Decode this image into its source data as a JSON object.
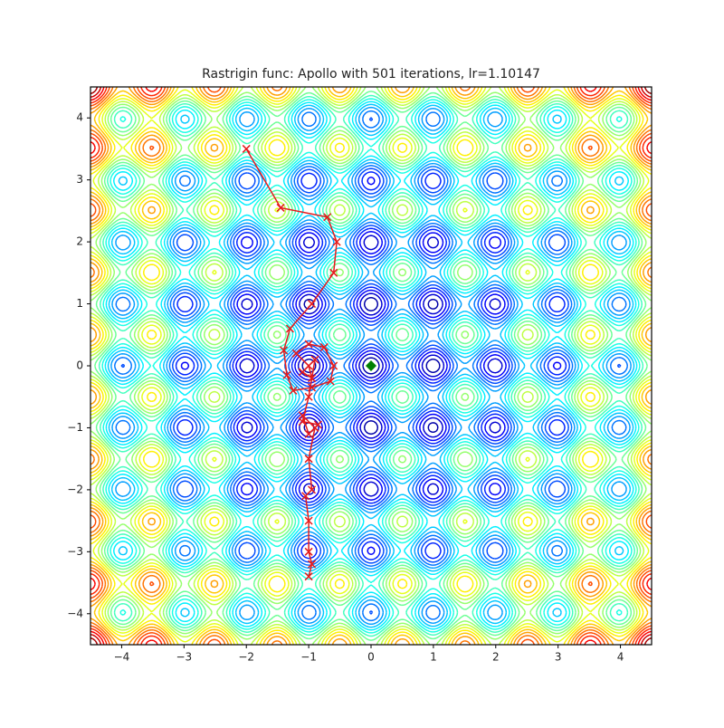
{
  "chart_data": {
    "type": "contour",
    "title": "Rastrigin func: Apollo with 501 iterations, lr=1.10147",
    "function": "rastrigin",
    "colormap": "jet",
    "levels": 25,
    "xlim": [
      -4.5,
      4.5
    ],
    "ylim": [
      -4.5,
      4.5
    ],
    "xticks": [
      {
        "value": -4,
        "label": "−4"
      },
      {
        "value": -3,
        "label": "−3"
      },
      {
        "value": -2,
        "label": "−2"
      },
      {
        "value": -1,
        "label": "−1"
      },
      0,
      1,
      2,
      3,
      4
    ],
    "yticks": [
      {
        "value": -4,
        "label": "−4"
      },
      {
        "value": -3,
        "label": "−3"
      },
      {
        "value": -2,
        "label": "−2"
      },
      {
        "value": -1,
        "label": "−1"
      },
      0,
      1,
      2,
      3,
      4
    ],
    "path": {
      "color": "#e41a1c",
      "x": [
        -2,
        -1.45,
        -0.7,
        -0.55,
        -0.6,
        -0.95,
        -1.3,
        -1.4,
        -1.35,
        -1.25,
        -0.95,
        -0.65,
        -0.6,
        -0.75,
        -1.0,
        -1.2,
        -1.0,
        -0.95,
        -1.1,
        -0.9,
        -1.0,
        -1.1,
        -0.85,
        -1.0,
        -1.1,
        -0.9,
        -1.0,
        -0.95,
        -1.05,
        -1.0,
        -1.0,
        -0.95,
        -1.0
      ],
      "y": [
        3.5,
        2.55,
        2.4,
        2.0,
        1.5,
        1.0,
        0.6,
        0.25,
        -0.15,
        -0.4,
        -0.35,
        -0.25,
        0.0,
        0.3,
        0.35,
        0.2,
        0.0,
        -0.2,
        -0.1,
        0.1,
        -0.5,
        -0.9,
        -0.95,
        -1.1,
        -0.8,
        -1.0,
        -1.5,
        -2.0,
        -2.1,
        -2.5,
        -3.0,
        -3.2,
        -3.4
      ]
    },
    "minimum": {
      "x": 0,
      "y": 0,
      "color": "green"
    }
  }
}
